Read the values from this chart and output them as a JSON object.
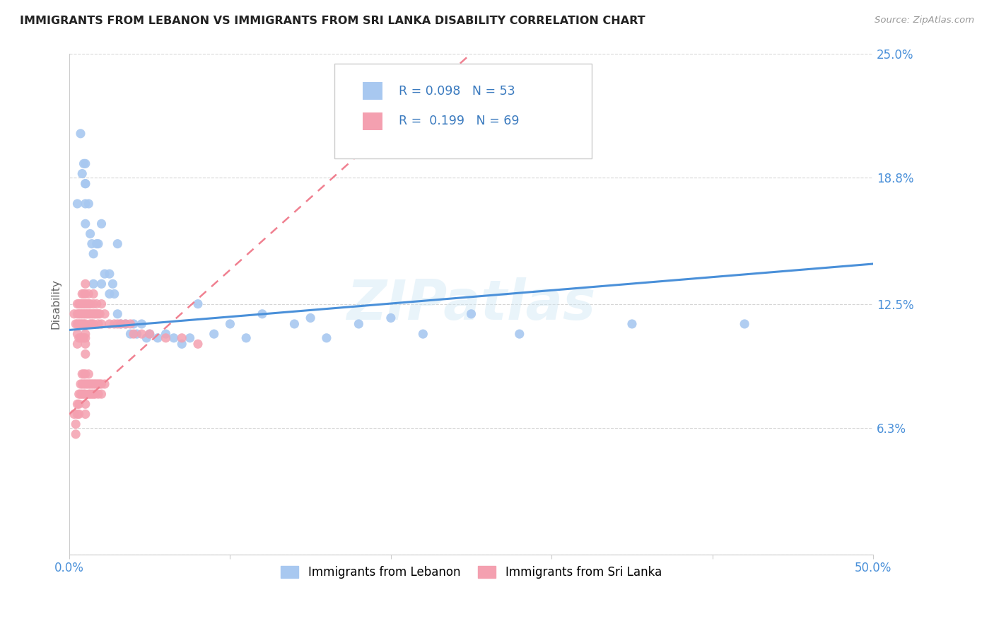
{
  "title": "IMMIGRANTS FROM LEBANON VS IMMIGRANTS FROM SRI LANKA DISABILITY CORRELATION CHART",
  "source": "Source: ZipAtlas.com",
  "ylabel": "Disability",
  "xlim": [
    0.0,
    0.5
  ],
  "ylim": [
    0.0,
    0.25
  ],
  "xtick_vals": [
    0.0,
    0.1,
    0.2,
    0.3,
    0.4,
    0.5
  ],
  "xticklabels": [
    "0.0%",
    "",
    "",
    "",
    "",
    "50.0%"
  ],
  "ytick_vals": [
    0.0,
    0.063,
    0.125,
    0.188,
    0.25
  ],
  "yticklabels": [
    "",
    "6.3%",
    "12.5%",
    "18.8%",
    "25.0%"
  ],
  "lebanon_R": 0.098,
  "lebanon_N": 53,
  "srilanka_R": 0.199,
  "srilanka_N": 69,
  "lebanon_color": "#a8c8f0",
  "srilanka_color": "#f4a0b0",
  "lebanon_line_color": "#4a90d9",
  "srilanka_line_color": "#f08090",
  "watermark": "ZIPatlas",
  "legend_label_lebanon": "Immigrants from Lebanon",
  "legend_label_srilanka": "Immigrants from Sri Lanka",
  "lebanon_x": [
    0.005,
    0.007,
    0.008,
    0.009,
    0.01,
    0.01,
    0.01,
    0.01,
    0.01,
    0.012,
    0.013,
    0.014,
    0.015,
    0.015,
    0.017,
    0.018,
    0.02,
    0.02,
    0.022,
    0.025,
    0.025,
    0.027,
    0.028,
    0.03,
    0.03,
    0.032,
    0.035,
    0.038,
    0.04,
    0.042,
    0.045,
    0.048,
    0.05,
    0.055,
    0.06,
    0.065,
    0.07,
    0.075,
    0.08,
    0.09,
    0.1,
    0.11,
    0.12,
    0.14,
    0.15,
    0.16,
    0.18,
    0.2,
    0.22,
    0.25,
    0.28,
    0.35,
    0.42
  ],
  "lebanon_y": [
    0.175,
    0.21,
    0.19,
    0.195,
    0.165,
    0.175,
    0.195,
    0.185,
    0.185,
    0.175,
    0.16,
    0.155,
    0.15,
    0.135,
    0.155,
    0.155,
    0.165,
    0.135,
    0.14,
    0.14,
    0.13,
    0.135,
    0.13,
    0.155,
    0.12,
    0.115,
    0.115,
    0.11,
    0.115,
    0.11,
    0.115,
    0.108,
    0.11,
    0.108,
    0.11,
    0.108,
    0.105,
    0.108,
    0.125,
    0.11,
    0.115,
    0.108,
    0.12,
    0.115,
    0.118,
    0.108,
    0.115,
    0.118,
    0.11,
    0.12,
    0.11,
    0.115,
    0.115
  ],
  "srilanka_x": [
    0.003,
    0.004,
    0.005,
    0.005,
    0.005,
    0.005,
    0.005,
    0.006,
    0.006,
    0.006,
    0.006,
    0.007,
    0.007,
    0.007,
    0.007,
    0.008,
    0.008,
    0.008,
    0.008,
    0.008,
    0.009,
    0.009,
    0.009,
    0.009,
    0.009,
    0.01,
    0.01,
    0.01,
    0.01,
    0.01,
    0.01,
    0.01,
    0.01,
    0.01,
    0.011,
    0.011,
    0.012,
    0.012,
    0.012,
    0.013,
    0.013,
    0.013,
    0.014,
    0.014,
    0.015,
    0.015,
    0.015,
    0.015,
    0.016,
    0.017,
    0.017,
    0.018,
    0.018,
    0.019,
    0.02,
    0.02,
    0.022,
    0.025,
    0.028,
    0.03,
    0.032,
    0.035,
    0.038,
    0.04,
    0.045,
    0.05,
    0.06,
    0.07,
    0.08
  ],
  "srilanka_y": [
    0.12,
    0.115,
    0.125,
    0.12,
    0.115,
    0.11,
    0.105,
    0.125,
    0.12,
    0.115,
    0.108,
    0.125,
    0.12,
    0.115,
    0.108,
    0.13,
    0.125,
    0.12,
    0.115,
    0.108,
    0.13,
    0.125,
    0.12,
    0.115,
    0.108,
    0.135,
    0.13,
    0.125,
    0.12,
    0.115,
    0.11,
    0.108,
    0.105,
    0.1,
    0.125,
    0.12,
    0.13,
    0.125,
    0.12,
    0.125,
    0.12,
    0.115,
    0.12,
    0.115,
    0.13,
    0.125,
    0.12,
    0.115,
    0.12,
    0.125,
    0.12,
    0.12,
    0.115,
    0.12,
    0.125,
    0.115,
    0.12,
    0.115,
    0.115,
    0.115,
    0.115,
    0.115,
    0.115,
    0.11,
    0.11,
    0.11,
    0.108,
    0.108,
    0.105
  ],
  "srilanka_extra_x": [
    0.003,
    0.004,
    0.004,
    0.005,
    0.005,
    0.006,
    0.006,
    0.006,
    0.007,
    0.007,
    0.008,
    0.008,
    0.008,
    0.009,
    0.009,
    0.009,
    0.01,
    0.01,
    0.01,
    0.01,
    0.01,
    0.011,
    0.012,
    0.012,
    0.012,
    0.013,
    0.013,
    0.014,
    0.014,
    0.015,
    0.015,
    0.016,
    0.016,
    0.017,
    0.018,
    0.018,
    0.019,
    0.02,
    0.02,
    0.022
  ],
  "srilanka_extra_y": [
    0.07,
    0.065,
    0.06,
    0.075,
    0.07,
    0.08,
    0.075,
    0.07,
    0.085,
    0.08,
    0.09,
    0.085,
    0.08,
    0.09,
    0.085,
    0.08,
    0.09,
    0.085,
    0.08,
    0.075,
    0.07,
    0.085,
    0.09,
    0.085,
    0.08,
    0.085,
    0.08,
    0.085,
    0.08,
    0.085,
    0.08,
    0.085,
    0.08,
    0.085,
    0.085,
    0.08,
    0.085,
    0.085,
    0.08,
    0.085
  ]
}
